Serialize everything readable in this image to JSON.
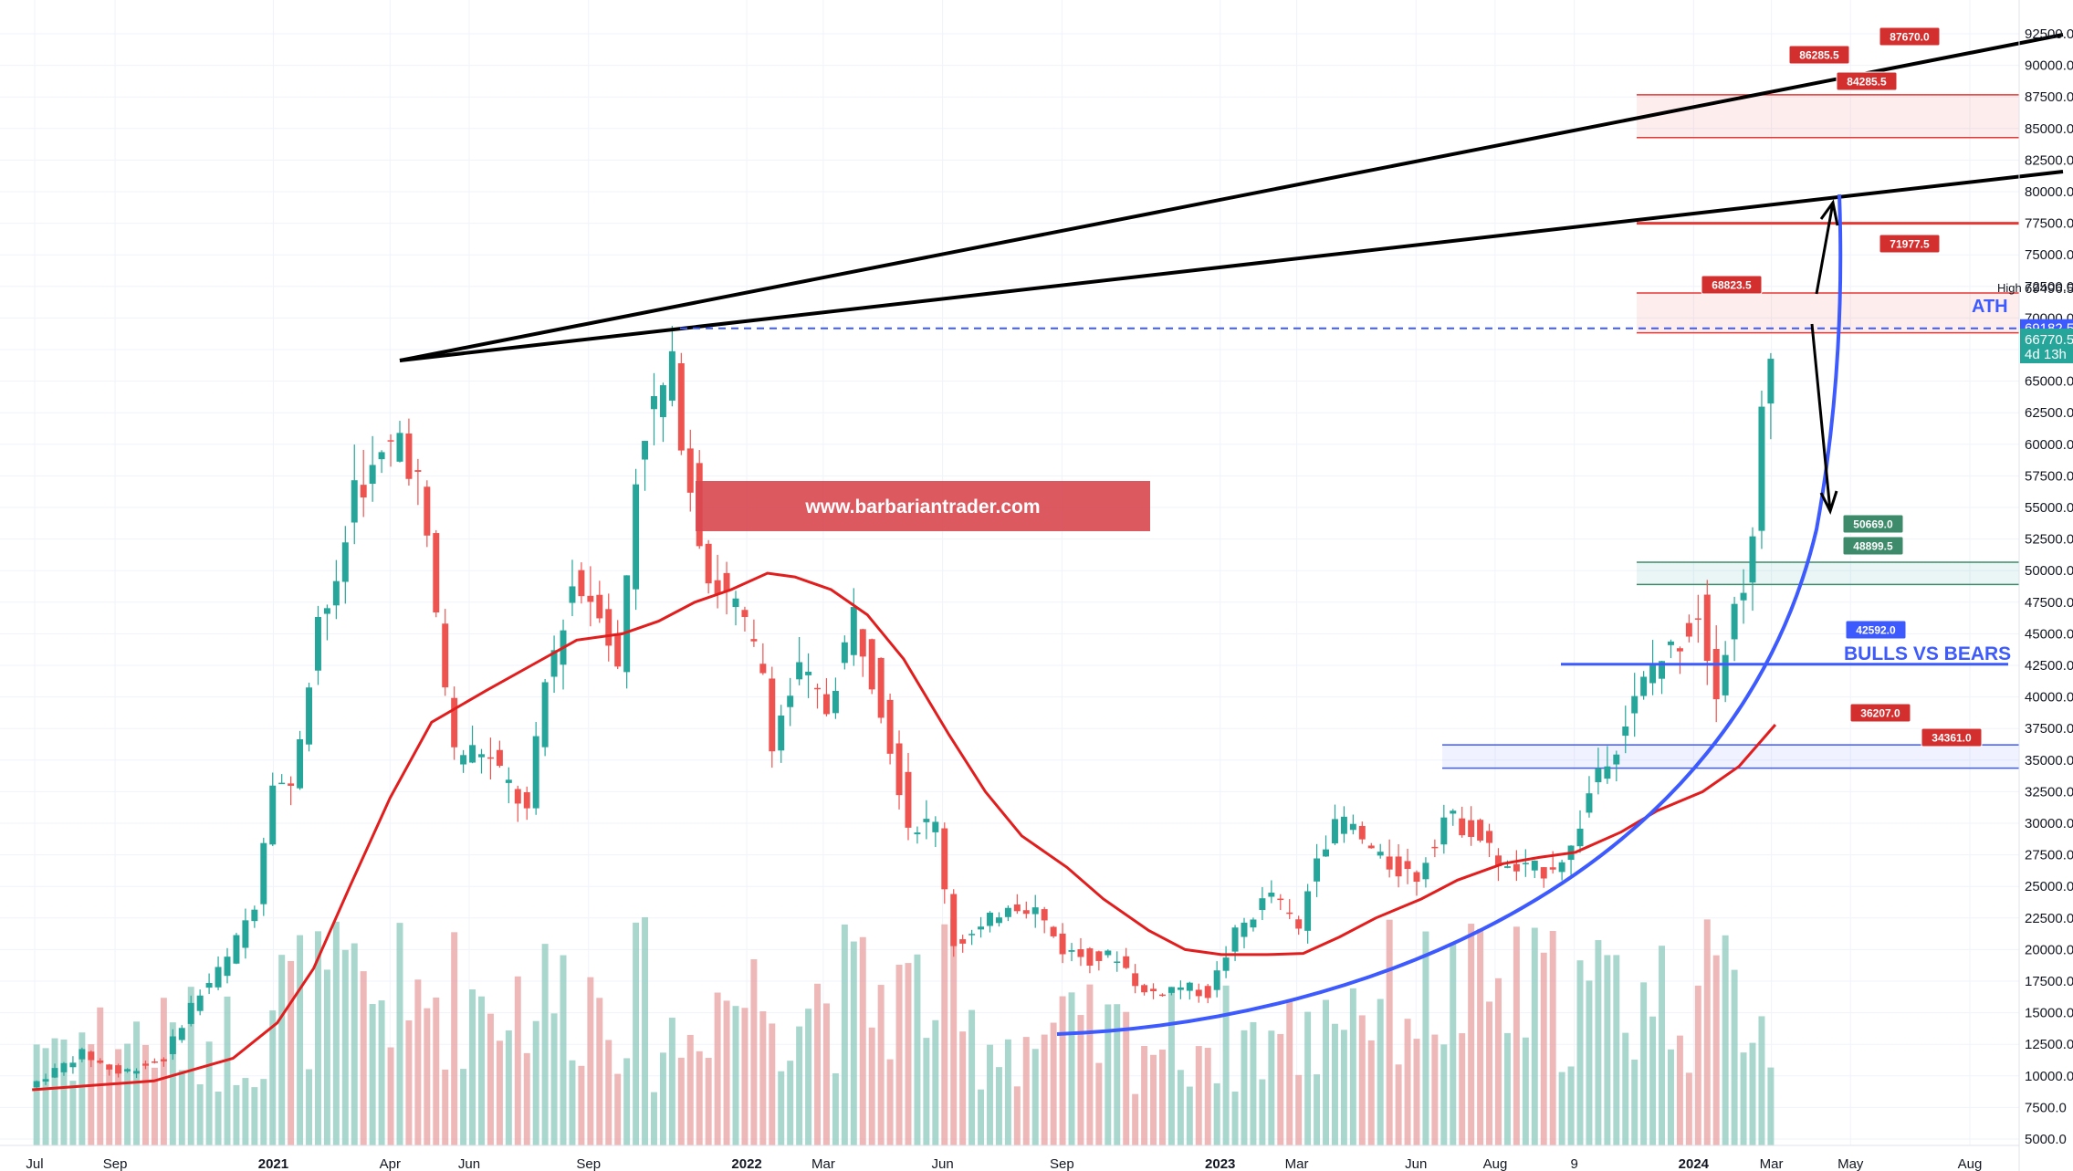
{
  "chart_data": {
    "type": "candlestick",
    "interval": "weekly",
    "y_axis": {
      "min": 5000,
      "max": 92500,
      "step": 2500,
      "position": "right",
      "ticks": [
        "5000.0",
        "7500.0",
        "10000.0",
        "12500.0",
        "15000.0",
        "17500.0",
        "20000.0",
        "22500.0",
        "25000.0",
        "27500.0",
        "30000.0",
        "32500.0",
        "35000.0",
        "37500.0",
        "40000.0",
        "42500.0",
        "45000.0",
        "47500.0",
        "50000.0",
        "52500.0",
        "55000.0",
        "57500.0",
        "60000.0",
        "62500.0",
        "65000.0",
        "67500.0",
        "70000.0",
        "72500.0",
        "75000.0",
        "77500.0",
        "80000.0",
        "82500.0",
        "85000.0",
        "87500.0",
        "90000.0",
        "92500.0"
      ]
    },
    "x_axis": {
      "start": "2020-07-01",
      "end": "2024-08-20",
      "ticks": [
        {
          "label": "Jul",
          "date": "2020-07-01",
          "bold": false
        },
        {
          "label": "Sep",
          "date": "2020-09-01",
          "bold": false
        },
        {
          "label": "2021",
          "date": "2021-01-01",
          "bold": true
        },
        {
          "label": "Apr",
          "date": "2021-04-01",
          "bold": false
        },
        {
          "label": "Jun",
          "date": "2021-06-01",
          "bold": false
        },
        {
          "label": "Sep",
          "date": "2021-09-01",
          "bold": false
        },
        {
          "label": "2022",
          "date": "2022-01-01",
          "bold": true
        },
        {
          "label": "Mar",
          "date": "2022-03-01",
          "bold": false
        },
        {
          "label": "Jun",
          "date": "2022-06-01",
          "bold": false
        },
        {
          "label": "Sep",
          "date": "2022-09-01",
          "bold": false
        },
        {
          "label": "2023",
          "date": "2023-01-01",
          "bold": true
        },
        {
          "label": "Mar",
          "date": "2023-03-01",
          "bold": false
        },
        {
          "label": "Jun",
          "date": "2023-06-01",
          "bold": false
        },
        {
          "label": "Aug",
          "date": "2023-08-01",
          "bold": false
        },
        {
          "label": "9",
          "date": "2023-10-01",
          "bold": false
        },
        {
          "label": "2024",
          "date": "2024-01-01",
          "bold": true
        },
        {
          "label": "Mar",
          "date": "2024-03-01",
          "bold": false
        },
        {
          "label": "May",
          "date": "2024-05-01",
          "bold": false
        },
        {
          "label": "Aug",
          "date": "2024-08-01",
          "bold": false
        }
      ]
    },
    "price_path": [
      [
        "2020-06-29",
        9100
      ],
      [
        "2020-08-10",
        11800
      ],
      [
        "2020-09-07",
        10200
      ],
      [
        "2020-10-12",
        11400
      ],
      [
        "2020-11-02",
        15600
      ],
      [
        "2020-11-30",
        19200
      ],
      [
        "2020-12-21",
        23800
      ],
      [
        "2021-01-04",
        34000
      ],
      [
        "2021-01-18",
        32500
      ],
      [
        "2021-02-08",
        46500
      ],
      [
        "2021-02-22",
        48000
      ],
      [
        "2021-03-08",
        57000
      ],
      [
        "2021-03-22",
        57500
      ],
      [
        "2021-04-12",
        60800
      ],
      [
        "2021-04-26",
        57000
      ],
      [
        "2021-05-10",
        46500
      ],
      [
        "2021-05-24",
        35500
      ],
      [
        "2021-06-14",
        35800
      ],
      [
        "2021-07-05",
        33000
      ],
      [
        "2021-07-19",
        30800
      ],
      [
        "2021-08-02",
        41000
      ],
      [
        "2021-08-23",
        48900
      ],
      [
        "2021-09-13",
        47500
      ],
      [
        "2021-09-27",
        42000
      ],
      [
        "2021-10-11",
        57500
      ],
      [
        "2021-10-18",
        61500
      ],
      [
        "2021-11-08",
        65600
      ],
      [
        "2021-11-22",
        57000
      ],
      [
        "2021-12-06",
        49500
      ],
      [
        "2021-12-27",
        47000
      ],
      [
        "2022-01-17",
        42000
      ],
      [
        "2022-01-24",
        36800
      ],
      [
        "2022-02-14",
        42000
      ],
      [
        "2022-03-07",
        39000
      ],
      [
        "2022-03-28",
        46500
      ],
      [
        "2022-04-18",
        39500
      ],
      [
        "2022-05-09",
        30000
      ],
      [
        "2022-05-30",
        29800
      ],
      [
        "2022-06-13",
        20500
      ],
      [
        "2022-07-04",
        21500
      ],
      [
        "2022-07-25",
        23800
      ],
      [
        "2022-08-15",
        23200
      ],
      [
        "2022-09-05",
        20000
      ],
      [
        "2022-09-26",
        19300
      ],
      [
        "2022-10-17",
        19500
      ],
      [
        "2022-11-07",
        16500
      ],
      [
        "2022-12-05",
        17100
      ],
      [
        "2022-12-26",
        16500
      ],
      [
        "2023-01-16",
        21200
      ],
      [
        "2023-02-13",
        24500
      ],
      [
        "2023-03-06",
        21500
      ],
      [
        "2023-03-20",
        28000
      ],
      [
        "2023-04-10",
        30300
      ],
      [
        "2023-05-08",
        27000
      ],
      [
        "2023-06-05",
        25800
      ],
      [
        "2023-06-26",
        30500
      ],
      [
        "2023-07-17",
        29600
      ],
      [
        "2023-08-14",
        26200
      ],
      [
        "2023-09-11",
        26300
      ],
      [
        "2023-10-02",
        27900
      ],
      [
        "2023-10-23",
        34500
      ],
      [
        "2023-11-06",
        36500
      ],
      [
        "2023-12-04",
        42500
      ],
      [
        "2023-12-18",
        43600
      ],
      [
        "2024-01-08",
        46800
      ],
      [
        "2024-01-22",
        41000
      ],
      [
        "2024-02-05",
        47000
      ],
      [
        "2024-02-19",
        51800
      ],
      [
        "2024-02-26",
        62000
      ],
      [
        "2024-03-04",
        66770
      ]
    ],
    "series": [
      {
        "name": "",
        "type": "moving_average",
        "color": "#e11d1d",
        "points": [
          [
            "2020-06-29",
            8900
          ],
          [
            "2020-10-01",
            9600
          ],
          [
            "2020-12-01",
            11400
          ],
          [
            "2021-01-04",
            14200
          ],
          [
            "2021-02-01",
            18500
          ],
          [
            "2021-03-01",
            25000
          ],
          [
            "2021-04-01",
            32000
          ],
          [
            "2021-05-03",
            38000
          ],
          [
            "2021-06-14",
            40500
          ],
          [
            "2021-07-19",
            42500
          ],
          [
            "2021-08-23",
            44500
          ],
          [
            "2021-09-27",
            45000
          ],
          [
            "2021-10-25",
            46000
          ],
          [
            "2021-11-22",
            47500
          ],
          [
            "2021-12-20",
            48500
          ],
          [
            "2022-01-17",
            49800
          ],
          [
            "2022-02-07",
            49500
          ],
          [
            "2022-03-07",
            48500
          ],
          [
            "2022-04-04",
            46500
          ],
          [
            "2022-05-02",
            43000
          ],
          [
            "2022-06-06",
            37000
          ],
          [
            "2022-07-04",
            32500
          ],
          [
            "2022-08-01",
            29000
          ],
          [
            "2022-09-05",
            26500
          ],
          [
            "2022-10-03",
            24000
          ],
          [
            "2022-11-07",
            21500
          ],
          [
            "2022-12-05",
            20000
          ],
          [
            "2023-01-02",
            19600
          ],
          [
            "2023-02-06",
            19600
          ],
          [
            "2023-03-06",
            19700
          ],
          [
            "2023-04-03",
            21000
          ],
          [
            "2023-05-01",
            22500
          ],
          [
            "2023-06-05",
            24000
          ],
          [
            "2023-07-03",
            25500
          ],
          [
            "2023-08-07",
            26800
          ],
          [
            "2023-09-04",
            27300
          ],
          [
            "2023-10-02",
            27700
          ],
          [
            "2023-11-06",
            29300
          ],
          [
            "2023-12-04",
            31000
          ],
          [
            "2024-01-08",
            32500
          ],
          [
            "2024-02-05",
            34500
          ],
          [
            "2024-03-04",
            37800
          ]
        ]
      }
    ],
    "volume_axis_top": 30000,
    "annotations": {
      "price_labels": [
        {
          "text": "87670.0",
          "price": 87670,
          "color": "#d32f2f"
        },
        {
          "text": "86285.5",
          "price": 86285.5,
          "color": "#d32f2f"
        },
        {
          "text": "84285.5",
          "price": 84285.5,
          "color": "#d32f2f"
        },
        {
          "text": "71977.5",
          "price": 71977.5,
          "color": "#d32f2f"
        },
        {
          "text": "68823.5",
          "price": 68823.5,
          "color": "#d32f2f"
        },
        {
          "text": "50669.0",
          "price": 50669,
          "color": "#3d8b6a"
        },
        {
          "text": "48899.5",
          "price": 48899.5,
          "color": "#3d8b6a"
        },
        {
          "text": "42592.0",
          "price": 42592,
          "color": "#3d5afe"
        },
        {
          "text": "36207.0",
          "price": 36207,
          "color": "#d32f2f"
        },
        {
          "text": "34361.0",
          "price": 34361,
          "color": "#d32f2f"
        }
      ],
      "ath_label": "ATH",
      "bulls_vs_bears": "BULLS VS BEARS",
      "website": "www.barbariantrader.com",
      "high_label": "High",
      "high_price": "69496.5",
      "ath_price": "69182.5",
      "last_price": "66770.5",
      "countdown": "4d 13h"
    }
  },
  "colors": {
    "up": "#26a69a",
    "down": "#ef5350",
    "up_vol": "#8cc9bd",
    "down_vol": "#e8a0a0",
    "ma": "#e11d1d",
    "curve": "#3d5afe",
    "trend": "#000000"
  }
}
